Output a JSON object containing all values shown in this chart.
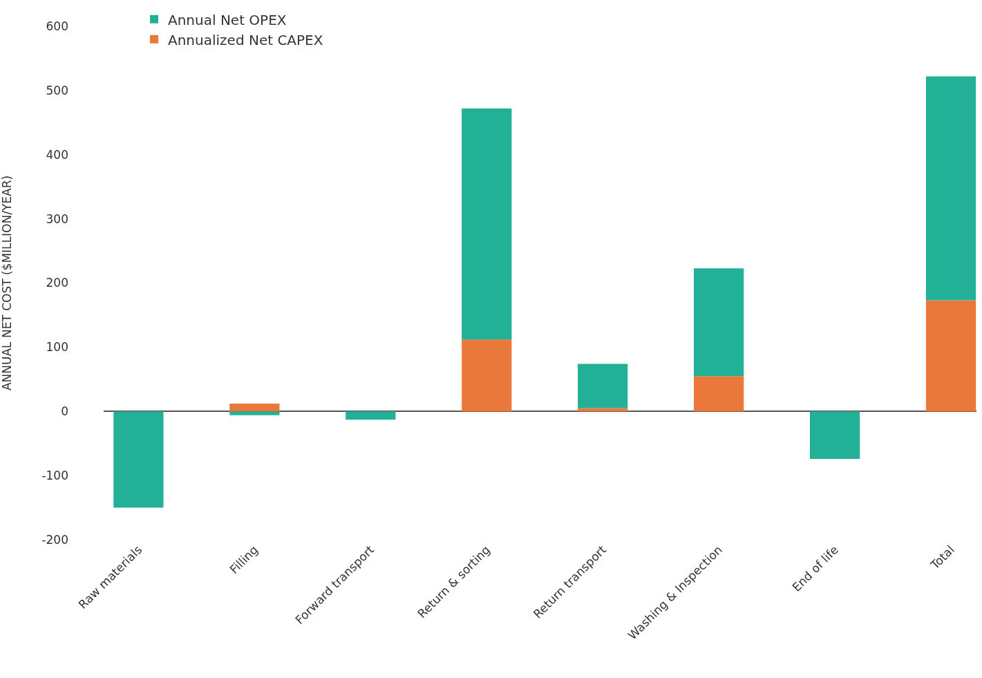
{
  "chart_data": {
    "type": "bar",
    "stacked": true,
    "ylabel": "ANNUAL NET COST ($MILLION/YEAR)",
    "categories": [
      "Raw materials",
      "Filling",
      "Forward transport",
      "Return & sorting",
      "Return transport",
      "Washing & Inspection",
      "End of life",
      "Total"
    ],
    "series": [
      {
        "name": "Annualized Net CAPEX",
        "color": "#ea783a",
        "values": [
          0,
          12,
          0,
          112,
          5,
          55,
          0,
          173
        ]
      },
      {
        "name": "Annual Net OPEX",
        "color": "#22b096",
        "values": [
          -150,
          -6,
          -13,
          360,
          69,
          168,
          -74,
          349
        ]
      }
    ],
    "ylim": [
      -200,
      600
    ],
    "yticks": [
      -200,
      -100,
      0,
      100,
      200,
      300,
      400,
      500,
      600
    ],
    "legend": "top"
  }
}
